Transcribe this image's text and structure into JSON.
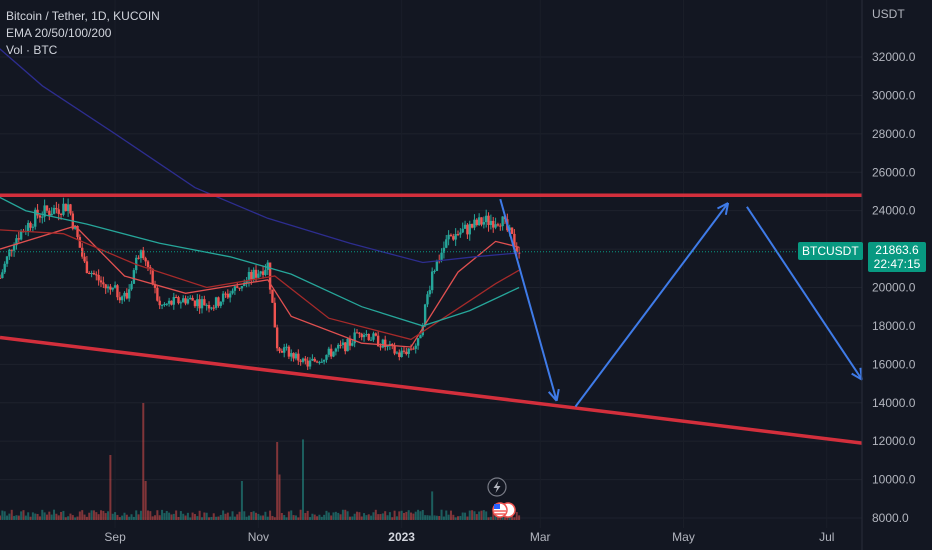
{
  "header": {
    "symbol_line": "Bitcoin / Tether, 1D, KUCOIN",
    "ema_line": "EMA 20/50/100/200",
    "vol_line": "Vol · BTC"
  },
  "price_axis": {
    "currency": "USDT"
  },
  "last_price": {
    "symbol": "BTCUSDT",
    "price": "21863.6",
    "countdown": "22:47:15"
  },
  "colors": {
    "background": "#131722",
    "bull": "#26a69a",
    "bear": "#ef5350",
    "trendline": "#d32f3c",
    "arrow": "#3f7be8",
    "ema20": "#e05050",
    "ema50": "#a52a2a",
    "ema100": "#26a69a",
    "ema200": "#2d2d8f"
  },
  "icons": [
    "lightning-icon",
    "us-flag-icon"
  ],
  "chart_data": {
    "type": "candlestick",
    "title": "Bitcoin / Tether, 1D, KUCOIN",
    "ylim": [
      8000,
      33000
    ],
    "ytick_labels": [
      "32000.0",
      "30000.0",
      "28000.0",
      "26000.0",
      "24000.0",
      "22000.0",
      "20000.0",
      "18000.0",
      "16000.0",
      "14000.0",
      "12000.0",
      "10000.0",
      "8000.0"
    ],
    "xtick_labels": [
      "Sep",
      "Nov",
      "2023",
      "Mar",
      "May",
      "Jul"
    ],
    "bold_xtick": "2023",
    "x_dates": [
      "2022-07-14",
      "2023-07-16"
    ],
    "price_anchors": [
      {
        "date": "2022-07-14",
        "price": 20500
      },
      {
        "date": "2022-07-20",
        "price": 22500
      },
      {
        "date": "2022-07-30",
        "price": 23800
      },
      {
        "date": "2022-08-12",
        "price": 24300
      },
      {
        "date": "2022-08-19",
        "price": 21200
      },
      {
        "date": "2022-08-28",
        "price": 20000
      },
      {
        "date": "2022-09-06",
        "price": 19500
      },
      {
        "date": "2022-09-12",
        "price": 22300
      },
      {
        "date": "2022-09-20",
        "price": 19000
      },
      {
        "date": "2022-10-01",
        "price": 19400
      },
      {
        "date": "2022-10-13",
        "price": 19100
      },
      {
        "date": "2022-10-25",
        "price": 20200
      },
      {
        "date": "2022-11-05",
        "price": 21200
      },
      {
        "date": "2022-11-09",
        "price": 17000
      },
      {
        "date": "2022-11-22",
        "price": 16000
      },
      {
        "date": "2022-12-10",
        "price": 17100
      },
      {
        "date": "2022-12-14",
        "price": 17800
      },
      {
        "date": "2022-12-31",
        "price": 16500
      },
      {
        "date": "2023-01-08",
        "price": 17100
      },
      {
        "date": "2023-01-14",
        "price": 20800
      },
      {
        "date": "2023-01-21",
        "price": 22600
      },
      {
        "date": "2023-02-04",
        "price": 23400
      },
      {
        "date": "2023-02-12",
        "price": 23600
      },
      {
        "date": "2023-02-20",
        "price": 21863.6
      }
    ],
    "ema_series": [
      {
        "name": "EMA 20",
        "points": [
          [
            "2022-07-14",
            22000
          ],
          [
            "2022-08-15",
            23200
          ],
          [
            "2022-09-05",
            20600
          ],
          [
            "2022-10-01",
            19700
          ],
          [
            "2022-11-05",
            20400
          ],
          [
            "2022-11-15",
            18500
          ],
          [
            "2022-12-15",
            17100
          ],
          [
            "2023-01-05",
            16900
          ],
          [
            "2023-01-25",
            20800
          ],
          [
            "2023-02-10",
            22400
          ],
          [
            "2023-02-20",
            22100
          ]
        ]
      },
      {
        "name": "EMA 50",
        "points": [
          [
            "2022-07-14",
            23000
          ],
          [
            "2022-08-10",
            22800
          ],
          [
            "2022-09-10",
            21200
          ],
          [
            "2022-10-10",
            20000
          ],
          [
            "2022-11-08",
            20600
          ],
          [
            "2022-12-01",
            18400
          ],
          [
            "2023-01-05",
            17300
          ],
          [
            "2023-01-25",
            18900
          ],
          [
            "2023-02-10",
            20200
          ],
          [
            "2023-02-20",
            20900
          ]
        ]
      },
      {
        "name": "EMA 100",
        "points": [
          [
            "2022-07-01",
            25500
          ],
          [
            "2022-07-25",
            24000
          ],
          [
            "2022-08-20",
            23300
          ],
          [
            "2022-09-20",
            22300
          ],
          [
            "2022-10-20",
            21600
          ],
          [
            "2022-11-15",
            20700
          ],
          [
            "2022-12-15",
            19000
          ],
          [
            "2023-01-10",
            18000
          ],
          [
            "2023-01-30",
            18800
          ],
          [
            "2023-02-20",
            20000
          ]
        ]
      },
      {
        "name": "EMA 200",
        "points": [
          [
            "2022-07-01",
            33800
          ],
          [
            "2022-08-01",
            30500
          ],
          [
            "2022-09-01",
            28000
          ],
          [
            "2022-10-05",
            25200
          ],
          [
            "2022-11-05",
            23600
          ],
          [
            "2022-12-10",
            22300
          ],
          [
            "2023-01-10",
            21300
          ],
          [
            "2023-02-01",
            21600
          ],
          [
            "2023-02-20",
            21800
          ]
        ]
      }
    ],
    "trendlines": [
      {
        "name": "resistance",
        "points": [
          [
            "2022-07-14",
            24800
          ],
          [
            "2023-07-16",
            24800
          ]
        ]
      },
      {
        "name": "support",
        "points": [
          [
            "2022-07-14",
            17400
          ],
          [
            "2023-07-16",
            11900
          ]
        ]
      }
    ],
    "projection_arrows": [
      {
        "points": [
          [
            "2023-02-12",
            24600
          ],
          [
            "2023-03-08",
            14100
          ]
        ]
      },
      {
        "points": [
          [
            "2023-03-16",
            13800
          ],
          [
            "2023-05-20",
            24400
          ]
        ]
      },
      {
        "points": [
          [
            "2023-05-28",
            24200
          ],
          [
            "2023-07-16",
            15200
          ]
        ]
      }
    ],
    "volume_spikes": [
      {
        "date": "2022-08-30",
        "rel": 0.5
      },
      {
        "date": "2022-09-13",
        "rel": 0.9
      },
      {
        "date": "2022-09-14",
        "rel": 0.3
      },
      {
        "date": "2022-10-25",
        "rel": 0.3
      },
      {
        "date": "2022-11-09",
        "rel": 0.6
      },
      {
        "date": "2022-11-10",
        "rel": 0.35
      },
      {
        "date": "2022-11-20",
        "rel": 0.62
      },
      {
        "date": "2023-01-14",
        "rel": 0.22
      }
    ]
  }
}
